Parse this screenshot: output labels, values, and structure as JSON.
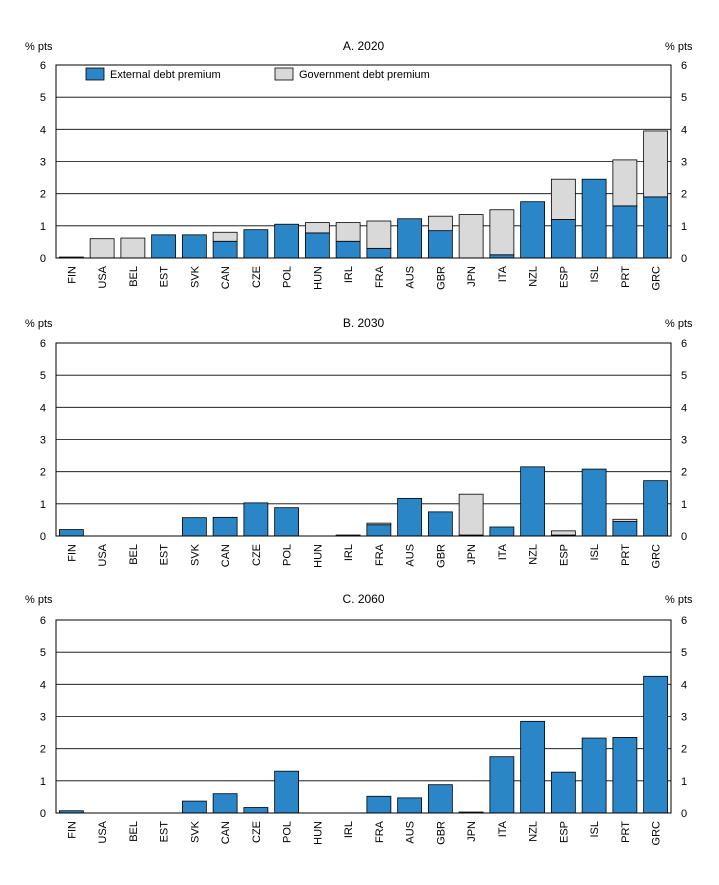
{
  "colors": {
    "external": "#2b86c8",
    "government": "#d9d9d9",
    "stroke": "#000000"
  },
  "legend": {
    "external": "External debt premium",
    "government": "Government debt premium"
  },
  "chart_data": [
    {
      "type": "bar",
      "stacked": true,
      "title": "A. 2020",
      "ylabel_left": "% pts",
      "ylabel_right": "% pts",
      "ylim": [
        0,
        6
      ],
      "yticks": [
        0,
        1,
        2,
        3,
        4,
        5,
        6
      ],
      "grid": true,
      "legend_position": "top",
      "categories": [
        "FIN",
        "USA",
        "BEL",
        "EST",
        "SVK",
        "CAN",
        "CZE",
        "POL",
        "HUN",
        "IRL",
        "FRA",
        "AUS",
        "GBR",
        "JPN",
        "ITA",
        "NZL",
        "ESP",
        "ISL",
        "PRT",
        "GRC"
      ],
      "series": [
        {
          "name": "External debt premium",
          "values": [
            0.03,
            0,
            0,
            0.72,
            0.72,
            0.52,
            0.88,
            1.05,
            0.78,
            0.52,
            0.3,
            1.22,
            0.85,
            0,
            0.1,
            1.75,
            1.2,
            2.45,
            1.62,
            1.9
          ]
        },
        {
          "name": "Government debt premium",
          "values": [
            0,
            0.6,
            0.62,
            0,
            0,
            0.28,
            0,
            0,
            0.32,
            0.58,
            0.85,
            0,
            0.45,
            1.35,
            1.4,
            0,
            1.25,
            0,
            1.43,
            2.05
          ]
        }
      ]
    },
    {
      "type": "bar",
      "stacked": true,
      "title": "B. 2030",
      "ylabel_left": "% pts",
      "ylabel_right": "% pts",
      "ylim": [
        0,
        6
      ],
      "yticks": [
        0,
        1,
        2,
        3,
        4,
        5,
        6
      ],
      "grid": true,
      "categories": [
        "FIN",
        "USA",
        "BEL",
        "EST",
        "SVK",
        "CAN",
        "CZE",
        "POL",
        "HUN",
        "IRL",
        "FRA",
        "AUS",
        "GBR",
        "JPN",
        "ITA",
        "NZL",
        "ESP",
        "ISL",
        "PRT",
        "GRC"
      ],
      "series": [
        {
          "name": "External debt premium",
          "values": [
            0.2,
            0,
            0,
            0,
            0.57,
            0.58,
            1.03,
            0.88,
            0,
            0.03,
            0.35,
            1.17,
            0.75,
            0.03,
            0.28,
            2.15,
            0.03,
            2.08,
            0.45,
            1.72
          ]
        },
        {
          "name": "Government debt premium",
          "values": [
            0,
            0,
            0,
            0,
            0,
            0,
            0,
            0,
            0,
            0,
            0.05,
            0,
            0,
            1.27,
            0,
            0,
            0.13,
            0,
            0.07,
            0
          ]
        }
      ]
    },
    {
      "type": "bar",
      "stacked": true,
      "title": "C. 2060",
      "ylabel_left": "% pts",
      "ylabel_right": "% pts",
      "ylim": [
        0,
        6
      ],
      "yticks": [
        0,
        1,
        2,
        3,
        4,
        5,
        6
      ],
      "grid": true,
      "categories": [
        "FIN",
        "USA",
        "BEL",
        "EST",
        "SVK",
        "CAN",
        "CZE",
        "POL",
        "HUN",
        "IRL",
        "FRA",
        "AUS",
        "GBR",
        "JPN",
        "ITA",
        "NZL",
        "ESP",
        "ISL",
        "PRT",
        "GRC"
      ],
      "series": [
        {
          "name": "External debt premium",
          "values": [
            0.07,
            0,
            0,
            0,
            0.37,
            0.6,
            0.17,
            1.3,
            0,
            0,
            0.52,
            0.47,
            0.88,
            0.03,
            1.75,
            2.85,
            1.27,
            2.33,
            2.35,
            4.25
          ]
        },
        {
          "name": "Government debt premium",
          "values": [
            0,
            0,
            0,
            0,
            0,
            0,
            0,
            0,
            0,
            0,
            0,
            0,
            0,
            0,
            0,
            0,
            0,
            0,
            0,
            0
          ]
        }
      ]
    }
  ]
}
